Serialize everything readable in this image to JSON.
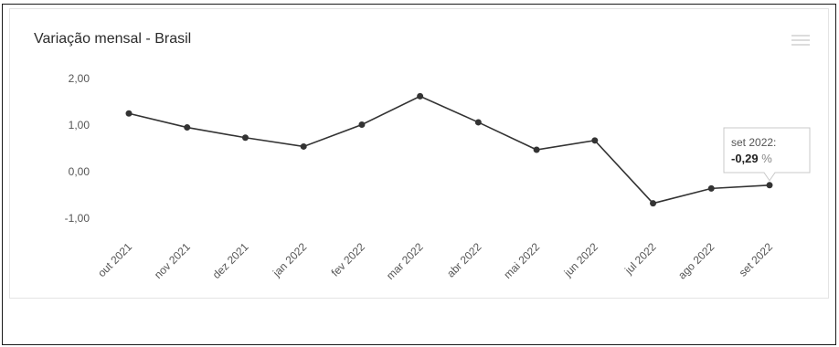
{
  "chart_data": {
    "type": "line",
    "title": "Variação mensal - Brasil",
    "categories": [
      "out 2021",
      "nov 2021",
      "dez 2021",
      "jan 2022",
      "fev 2022",
      "mar 2022",
      "abr 2022",
      "mai 2022",
      "jun 2022",
      "jul 2022",
      "ago 2022",
      "set 2022"
    ],
    "series": [
      {
        "values": [
          1.25,
          0.95,
          0.73,
          0.54,
          1.01,
          1.62,
          1.06,
          0.47,
          0.67,
          -0.68,
          -0.36,
          -0.29
        ]
      }
    ],
    "y_ticks": [
      "2,00",
      "1,00",
      "0,00",
      "-1,00"
    ],
    "ylim": [
      -1.0,
      2.0
    ],
    "grid": false,
    "line_color": "#333333",
    "tooltip": {
      "label": "set 2022:",
      "value": "-0,29",
      "unit": "%"
    }
  }
}
